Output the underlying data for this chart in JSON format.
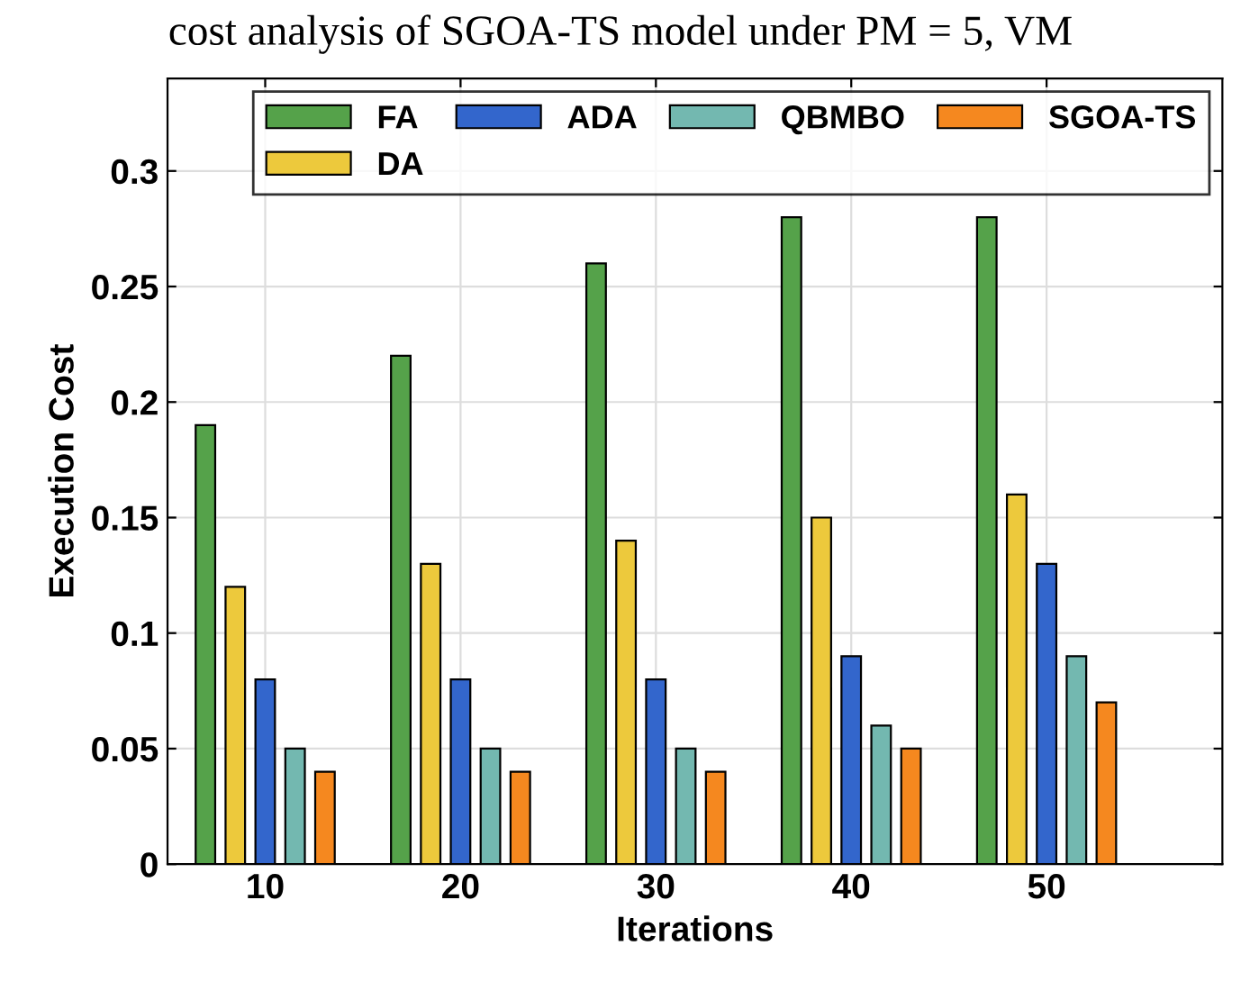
{
  "chart_data": {
    "type": "bar",
    "title": "cost analysis of SGOA-TS model under PM = 5, VM",
    "xlabel": "Iterations",
    "ylabel": "Execution Cost",
    "categories": [
      "10",
      "20",
      "30",
      "40",
      "50"
    ],
    "series": [
      {
        "name": "FA",
        "color": "#55a24a",
        "values": [
          0.19,
          0.22,
          0.26,
          0.28,
          0.28
        ]
      },
      {
        "name": "DA",
        "color": "#edc93c",
        "values": [
          0.12,
          0.13,
          0.14,
          0.15,
          0.16
        ]
      },
      {
        "name": "ADA",
        "color": "#3366cc",
        "values": [
          0.08,
          0.08,
          0.08,
          0.09,
          0.13
        ]
      },
      {
        "name": "QBMBO",
        "color": "#73b8b0",
        "values": [
          0.05,
          0.05,
          0.05,
          0.06,
          0.09
        ]
      },
      {
        "name": "SGOA-TS",
        "color": "#f5881f",
        "values": [
          0.04,
          0.04,
          0.04,
          0.05,
          0.07
        ]
      }
    ],
    "ylim": [
      0,
      0.34
    ],
    "yticks": [
      0,
      0.05,
      0.1,
      0.15,
      0.2,
      0.25,
      0.3
    ],
    "grid": true,
    "legend": "top right"
  }
}
